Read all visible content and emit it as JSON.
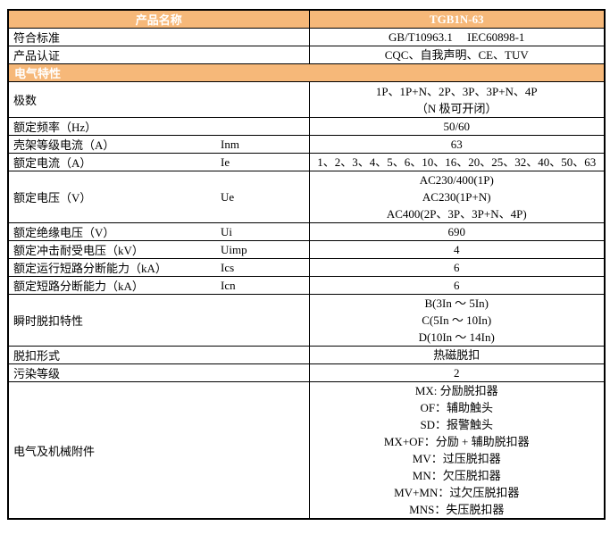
{
  "colors": {
    "accent": "#F6B879",
    "border": "#000000",
    "header_text": "#FFFFFF"
  },
  "table": {
    "header": {
      "col1": "产品名称",
      "col2": "TGB1N-63"
    },
    "section_title": "电气特性",
    "rows": [
      {
        "name": "符合标准",
        "symbol": "",
        "values": [
          "GB/T10963.1　 IEC60898-1"
        ]
      },
      {
        "name": "产品认证",
        "symbol": "",
        "values": [
          "CQC、自我声明、CE、TUV"
        ]
      },
      {
        "name": "极数",
        "symbol": "",
        "values": [
          "1P、1P+N、2P、3P、3P+N、4P",
          "（N 极可开闭）"
        ]
      },
      {
        "name": "额定频率（Hz）",
        "symbol": "",
        "values": [
          "50/60"
        ]
      },
      {
        "name": "壳架等级电流（A）",
        "symbol": "Inm",
        "values": [
          "63"
        ]
      },
      {
        "name": "额定电流（A）",
        "symbol": "Ie",
        "values": [
          "1、2、3、4、5、6、10、16、20、25、32、40、50、63"
        ]
      },
      {
        "name": "额定电压（V）",
        "symbol": "Ue",
        "values": [
          "AC230/400(1P)",
          "AC230(1P+N)",
          "AC400(2P、3P、3P+N、4P)"
        ]
      },
      {
        "name": "额定绝缘电压（V）",
        "symbol": "Ui",
        "values": [
          "690"
        ]
      },
      {
        "name": "额定冲击耐受电压（kV）",
        "symbol": "Uimp",
        "values": [
          "4"
        ]
      },
      {
        "name": "额定运行短路分断能力（kA）",
        "symbol": "Ics",
        "values": [
          "6"
        ]
      },
      {
        "name": "额定短路分断能力（kA）",
        "symbol": "Icn",
        "values": [
          "6"
        ]
      },
      {
        "name": "瞬时脱扣特性",
        "symbol": "",
        "values": [
          "B(3In ～ 5In)",
          "C(5In ～ 10In)",
          "D(10In ～ 14In)"
        ]
      },
      {
        "name": "脱扣形式",
        "symbol": "",
        "values": [
          "热磁脱扣"
        ]
      },
      {
        "name": "污染等级",
        "symbol": "",
        "values": [
          "2"
        ]
      },
      {
        "name": "电气及机械附件",
        "symbol": "",
        "values": [
          "MX: 分励脱扣器",
          "OF：辅助触头",
          "SD：报警触头",
          "MX+OF：分励 + 辅助脱扣器",
          "MV：过压脱扣器",
          "MN：欠压脱扣器",
          "MV+MN：过欠压脱扣器",
          "MNS：失压脱扣器"
        ]
      }
    ]
  }
}
